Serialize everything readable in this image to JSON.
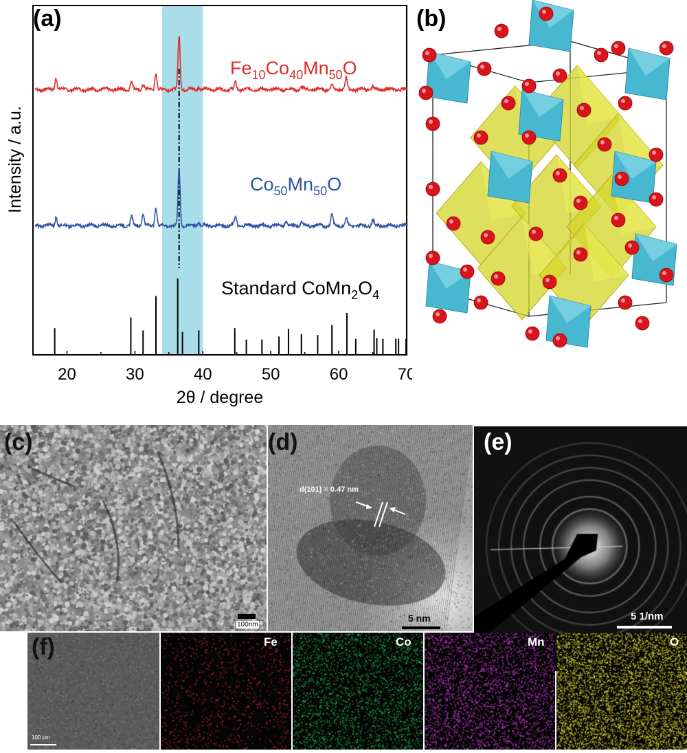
{
  "panels": {
    "a": "(a)",
    "b": "(b)",
    "c": "(c)",
    "d": "(d)",
    "e": "(e)",
    "f": "(f)"
  },
  "chart_data": {
    "type": "line",
    "xlabel": "2θ / degree",
    "ylabel": "Intensity / a.u.",
    "xlim": [
      15,
      70
    ],
    "xticks": [
      20,
      30,
      40,
      50,
      60,
      70
    ],
    "highlight_band": [
      34,
      40
    ],
    "highlight_color": "#a9dde9",
    "reference_line_x": 36.5,
    "series": [
      {
        "name": "Fe10Co40Mn50O",
        "label_main": [
          "Fe",
          "10",
          "Co",
          "40",
          "Mn",
          "50",
          "O"
        ],
        "color": "#e02a2a",
        "peaks": [
          [
            18.4,
            0.22
          ],
          [
            29.5,
            0.15
          ],
          [
            31.2,
            0.1
          ],
          [
            33.1,
            0.3
          ],
          [
            36.5,
            1.0
          ],
          [
            39.4,
            0.05
          ],
          [
            44.8,
            0.13
          ],
          [
            54.5,
            0.04
          ],
          [
            59.0,
            0.08
          ],
          [
            61.1,
            0.22
          ],
          [
            65.0,
            0.05
          ]
        ]
      },
      {
        "name": "Co50Mn50O",
        "label_main": [
          "Co",
          "50",
          "Mn",
          "50",
          "O"
        ],
        "color": "#2d55a3",
        "peaks": [
          [
            18.4,
            0.16
          ],
          [
            29.5,
            0.17
          ],
          [
            31.2,
            0.22
          ],
          [
            33.1,
            0.32
          ],
          [
            36.5,
            1.0
          ],
          [
            39.4,
            0.07
          ],
          [
            44.8,
            0.15
          ],
          [
            52.2,
            0.07
          ],
          [
            54.5,
            0.05
          ],
          [
            59.0,
            0.2
          ],
          [
            61.1,
            0.13
          ],
          [
            65.0,
            0.1
          ]
        ]
      },
      {
        "name": "Standard CoMn2O4",
        "label_main": [
          "Standard CoMn",
          "2",
          "O",
          "4"
        ],
        "color": "#000000",
        "type": "stick",
        "x": [
          18.2,
          29.4,
          31.2,
          33.1,
          36.3,
          37.0,
          39.4,
          44.7,
          46.4,
          48.7,
          51.2,
          52.6,
          54.5,
          56.9,
          59.0,
          61.2,
          62.5,
          65.2,
          65.6,
          66.5,
          68.4,
          68.8,
          69.9
        ],
        "values": [
          35,
          49,
          32,
          77,
          100,
          30,
          32,
          35,
          20,
          20,
          24,
          34,
          27,
          26,
          39,
          55,
          21,
          33,
          22,
          21,
          21,
          21,
          21
        ]
      }
    ]
  },
  "images": {
    "d_annotation": "d(101) = 0.47 nm",
    "c_scalebar": "100nm",
    "d_scalebar": "5 nm",
    "e_scalebar": "5  1/nm",
    "f_scalebar": "100 μm",
    "eds_maps": [
      {
        "label": "Fe",
        "color": "#d8283c"
      },
      {
        "label": "Co",
        "color": "#22b050"
      },
      {
        "label": "Mn",
        "color": "#c03cc8"
      },
      {
        "label": "O",
        "color": "#d8d030"
      }
    ]
  }
}
